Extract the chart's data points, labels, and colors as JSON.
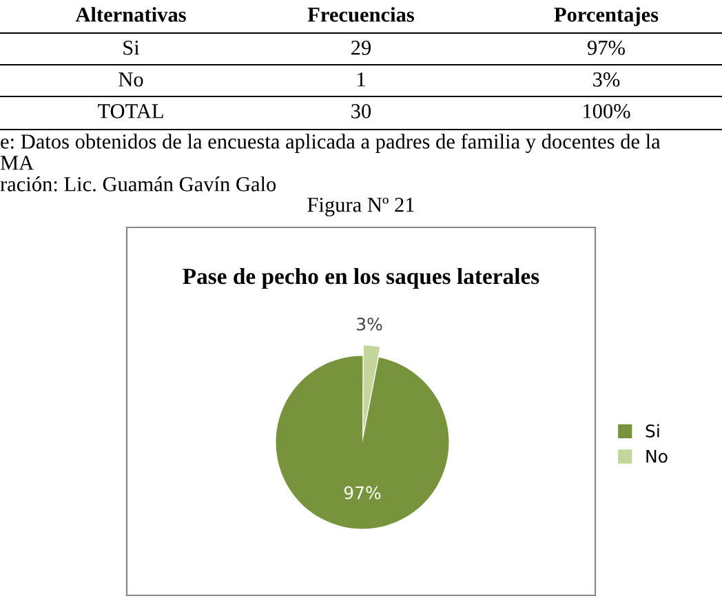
{
  "chart_data": {
    "type": "pie",
    "title": "Pase de pecho en los saques laterales",
    "categories": [
      "Si",
      "No"
    ],
    "values": [
      97,
      3
    ],
    "colors": [
      "#77933c",
      "#c3d69b"
    ],
    "value_labels": [
      "97%",
      "3%"
    ],
    "legend": "right",
    "annotations": [
      "Alternativas",
      "Frecuencias",
      "Porcentajes",
      "Si",
      "29",
      "97%",
      "No",
      "1",
      "3%",
      "TOTAL",
      "30",
      "100%",
      "e: Datos obtenidos de la encuesta aplicada a padres de familia y docentes de la",
      "MA",
      "ración: Lic. Guamán Gavín Galo",
      "Figura Nº 21"
    ]
  }
}
